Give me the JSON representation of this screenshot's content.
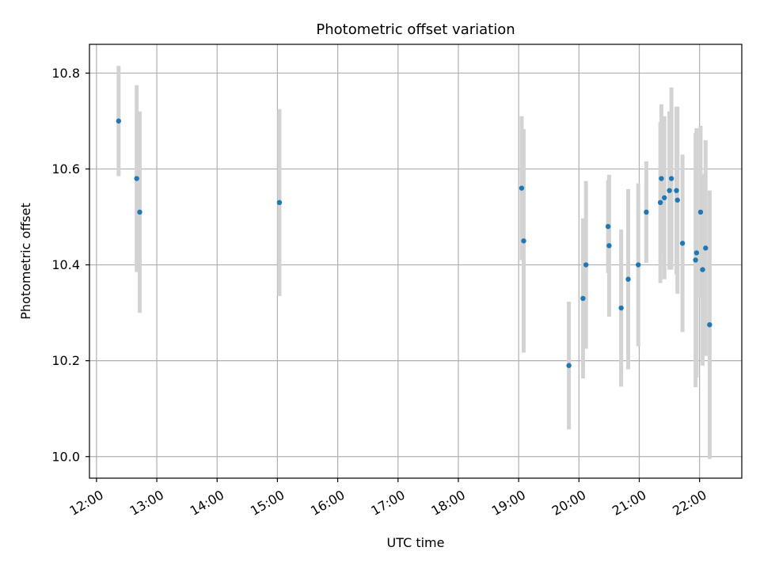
{
  "chart_data": {
    "type": "scatter",
    "title": "Photometric offset variation",
    "xlabel": "UTC time",
    "ylabel": "Photometric offset",
    "x_ticks": [
      "12:00",
      "13:00",
      "14:00",
      "15:00",
      "16:00",
      "17:00",
      "18:00",
      "19:00",
      "20:00",
      "21:00",
      "22:00"
    ],
    "y_ticks": [
      "10.0",
      "10.2",
      "10.4",
      "10.6",
      "10.8"
    ],
    "xlim": [
      "11:53",
      "22:42"
    ],
    "ylim": [
      9.955,
      10.86
    ],
    "grid": true,
    "colors": {
      "point": "#1f77b4",
      "errorbar": "#d3d3d3"
    },
    "points": [
      {
        "x": "12:22",
        "y": 10.7,
        "err": 0.115
      },
      {
        "x": "12:40",
        "y": 10.58,
        "err": 0.195
      },
      {
        "x": "12:43",
        "y": 10.51,
        "err": 0.21
      },
      {
        "x": "15:02",
        "y": 10.53,
        "err": 0.195
      },
      {
        "x": "19:03",
        "y": 10.56,
        "err": 0.15
      },
      {
        "x": "19:05",
        "y": 10.45,
        "err": 0.233
      },
      {
        "x": "19:50",
        "y": 10.19,
        "err": 0.133
      },
      {
        "x": "20:04",
        "y": 10.33,
        "err": 0.167
      },
      {
        "x": "20:07",
        "y": 10.4,
        "err": 0.175
      },
      {
        "x": "20:29",
        "y": 10.48,
        "err": 0.097
      },
      {
        "x": "20:30",
        "y": 10.44,
        "err": 0.148
      },
      {
        "x": "20:42",
        "y": 10.31,
        "err": 0.164
      },
      {
        "x": "20:49",
        "y": 10.37,
        "err": 0.188
      },
      {
        "x": "20:59",
        "y": 10.4,
        "err": 0.17
      },
      {
        "x": "21:07",
        "y": 10.51,
        "err": 0.106
      },
      {
        "x": "21:21",
        "y": 10.53,
        "err": 0.168
      },
      {
        "x": "21:22",
        "y": 10.58,
        "err": 0.155
      },
      {
        "x": "21:25",
        "y": 10.54,
        "err": 0.17
      },
      {
        "x": "21:30",
        "y": 10.555,
        "err": 0.165
      },
      {
        "x": "21:32",
        "y": 10.58,
        "err": 0.19
      },
      {
        "x": "21:37",
        "y": 10.555,
        "err": 0.175
      },
      {
        "x": "21:38",
        "y": 10.535,
        "err": 0.195
      },
      {
        "x": "21:43",
        "y": 10.445,
        "err": 0.185
      },
      {
        "x": "21:56",
        "y": 10.41,
        "err": 0.265
      },
      {
        "x": "21:57",
        "y": 10.425,
        "err": 0.26
      },
      {
        "x": "22:01",
        "y": 10.51,
        "err": 0.18
      },
      {
        "x": "22:03",
        "y": 10.39,
        "err": 0.2
      },
      {
        "x": "22:06",
        "y": 10.435,
        "err": 0.225
      },
      {
        "x": "22:10",
        "y": 10.275,
        "err": 0.28
      }
    ]
  }
}
